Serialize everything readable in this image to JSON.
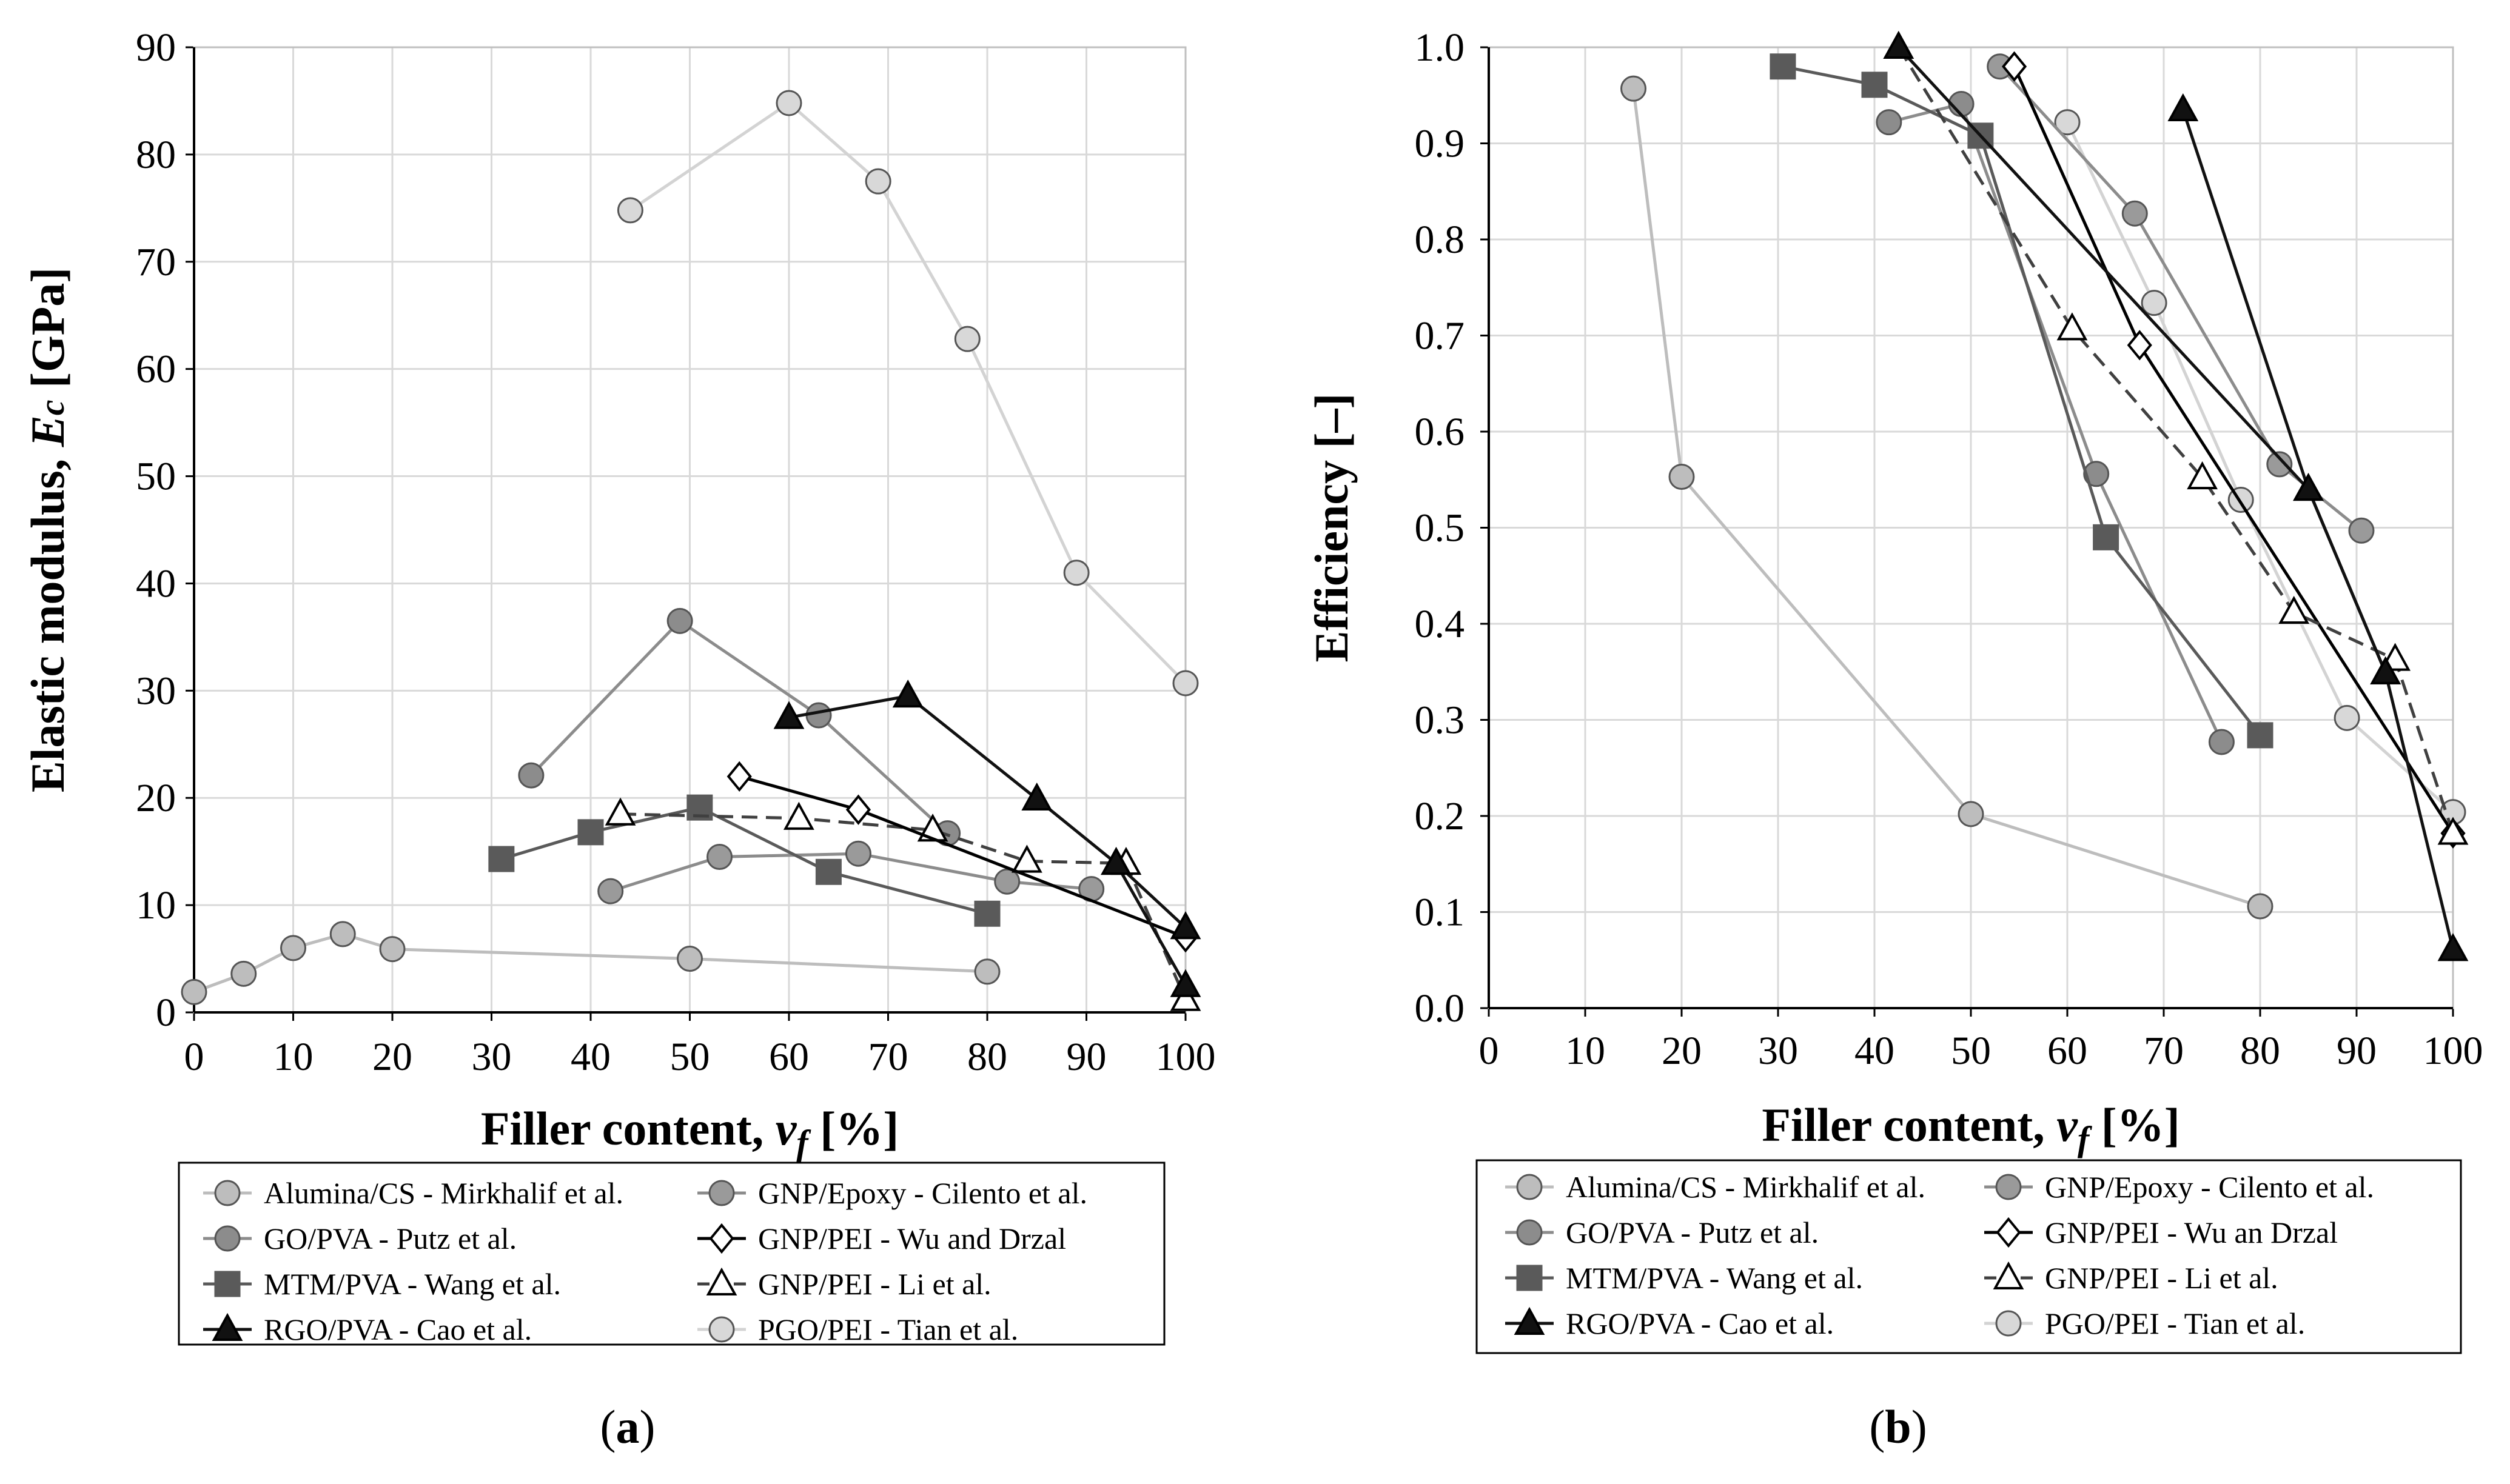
{
  "figure_captions": {
    "a": "(a)",
    "b": "(b)"
  },
  "caption_parts": {
    "open": "(",
    "a_letter": "a",
    "b_letter": "b",
    "close": ")"
  },
  "styles": {
    "Alumina/CS": {
      "color": "#bdbdbd",
      "marker": "circle",
      "fill": "#bdbdbd",
      "dash": false
    },
    "GNP/Epoxy": {
      "color": "#8c8c8c",
      "marker": "circle",
      "fill": "#9a9a9a",
      "dash": false
    },
    "GO/PVA": {
      "color": "#8c8c8c",
      "marker": "circle",
      "fill": "#8c8c8c",
      "dash": false
    },
    "GNP/PEI-WD": {
      "color": "#000000",
      "marker": "diamond",
      "fill": "#ffffff",
      "dash": false
    },
    "MTM/PVA": {
      "color": "#5a5a5a",
      "marker": "square",
      "fill": "#5a5a5a",
      "dash": false
    },
    "GNP/PEI-Li": {
      "color": "#404040",
      "marker": "triangle",
      "fill": "#ffffff",
      "dash": true
    },
    "RGO/PVA": {
      "color": "#111111",
      "marker": "triangle",
      "fill": "#111111",
      "dash": false
    },
    "PGO/PEI": {
      "color": "#d3d3d3",
      "marker": "circle",
      "fill": "#d8d8d8",
      "dash": false
    }
  },
  "chart_data": [
    {
      "id": "a",
      "type": "line",
      "title": "",
      "xlabel": {
        "main": "Filler content, ",
        "var": "v",
        "sub": "f",
        "unit": " [%]"
      },
      "ylabel": {
        "main": "Elastic modulus, ",
        "var": "E",
        "sub": "c",
        "unit": " [GPa]"
      },
      "xlim": [
        0,
        100
      ],
      "ylim": [
        0,
        90
      ],
      "xticks": [
        "0",
        "10",
        "20",
        "30",
        "40",
        "50",
        "60",
        "70",
        "80",
        "90",
        "100"
      ],
      "yticks": [
        "0",
        "10",
        "20",
        "30",
        "40",
        "50",
        "60",
        "70",
        "80",
        "90"
      ],
      "legend": [
        [
          "Alumina/CS - Mirkhalif et al.",
          "Alumina/CS"
        ],
        [
          "GNP/Epoxy - Cilento et al.",
          "GNP/Epoxy"
        ],
        [
          "GO/PVA - Putz et al.",
          "GO/PVA"
        ],
        [
          "GNP/PEI - Wu and Drzal",
          "GNP/PEI-WD"
        ],
        [
          "MTM/PVA - Wang et al.",
          "MTM/PVA"
        ],
        [
          "GNP/PEI - Li et al.",
          "GNP/PEI-Li"
        ],
        [
          "RGO/PVA - Cao et al.",
          "RGO/PVA"
        ],
        [
          "PGO/PEI - Tian et al.",
          "PGO/PEI"
        ]
      ],
      "series": [
        {
          "name": "PGO/PEI",
          "x": [
            44,
            60,
            69,
            78,
            89,
            100
          ],
          "y": [
            74.8,
            84.8,
            77.5,
            62.8,
            41,
            30.7
          ]
        },
        {
          "name": "Alumina/CS",
          "x": [
            0,
            5,
            10,
            15,
            20,
            50,
            80
          ],
          "y": [
            1.9,
            3.6,
            6,
            7.3,
            5.9,
            5,
            3.8
          ]
        },
        {
          "name": "GNP/Epoxy",
          "x": [
            42,
            53,
            67,
            82,
            90.5
          ],
          "y": [
            11.3,
            14.5,
            14.8,
            12.2,
            11.5
          ]
        },
        {
          "name": "GO/PVA",
          "x": [
            34,
            49,
            63,
            76
          ],
          "y": [
            22.1,
            36.5,
            27.7,
            16.7
          ]
        },
        {
          "name": "MTM/PVA",
          "x": [
            31,
            40,
            51,
            64,
            80
          ],
          "y": [
            14.3,
            16.8,
            19.1,
            13.1,
            9.2
          ]
        },
        {
          "name": "GNP/PEI-Li",
          "x": [
            43,
            61,
            74.5,
            84,
            94,
            100
          ],
          "y": [
            18.5,
            18.1,
            17,
            14.1,
            13.9,
            1.2
          ]
        },
        {
          "name": "GNP/PEI-WD",
          "x": [
            55,
            67,
            100
          ],
          "y": [
            22,
            18.9,
            7
          ]
        },
        {
          "name": "RGO/PVA",
          "x": [
            60,
            72,
            85,
            93,
            100
          ],
          "y": [
            27.5,
            29.5,
            19.9,
            13.9,
            2.5
          ]
        },
        {
          "name": "RGO/PVA-tail",
          "style": "RGO/PVA",
          "x": [
            93,
            100
          ],
          "y": [
            13.9,
            7.9
          ]
        }
      ]
    },
    {
      "id": "b",
      "type": "line",
      "title": "",
      "xlabel": {
        "main": "Filler content, ",
        "var": "v",
        "sub": "f",
        "unit": " [%]"
      },
      "ylabel": {
        "main": "Efficiency [–]",
        "var": "",
        "sub": "",
        "unit": ""
      },
      "xlim": [
        0,
        100
      ],
      "ylim": [
        0,
        1
      ],
      "xticks": [
        "0",
        "10",
        "20",
        "30",
        "40",
        "50",
        "60",
        "70",
        "80",
        "90",
        "100"
      ],
      "yticks": [
        "0.0",
        "0.1",
        "0.2",
        "0.3",
        "0.4",
        "0.5",
        "0.6",
        "0.7",
        "0.8",
        "0.9",
        "1.0"
      ],
      "legend": [
        [
          "Alumina/CS - Mirkhalif et al.",
          "Alumina/CS"
        ],
        [
          "GNP/Epoxy - Cilento et al.",
          "GNP/Epoxy"
        ],
        [
          "GO/PVA - Putz et al.",
          "GO/PVA"
        ],
        [
          "GNP/PEI - Wu an Drzal",
          "GNP/PEI-WD"
        ],
        [
          "MTM/PVA - Wang et al.",
          "MTM/PVA"
        ],
        [
          "GNP/PEI - Li et al.",
          "GNP/PEI-Li"
        ],
        [
          "RGO/PVA - Cao et al.",
          "RGO/PVA"
        ],
        [
          "PGO/PEI - Tian et al.",
          "PGO/PEI"
        ]
      ],
      "series": [
        {
          "name": "Alumina/CS",
          "x": [
            15,
            20,
            50,
            80
          ],
          "y": [
            0.957,
            0.553,
            0.202,
            0.106
          ]
        },
        {
          "name": "PGO/PEI",
          "x": [
            60,
            69,
            78,
            89,
            100
          ],
          "y": [
            0.922,
            0.734,
            0.529,
            0.302,
            0.204
          ]
        },
        {
          "name": "GNP/Epoxy",
          "x": [
            53,
            67,
            82,
            90.5
          ],
          "y": [
            0.98,
            0.827,
            0.566,
            0.497
          ]
        },
        {
          "name": "GO/PVA",
          "x": [
            41.5,
            49,
            63,
            76
          ],
          "y": [
            0.922,
            0.941,
            0.556,
            0.277
          ]
        },
        {
          "name": "MTM/PVA",
          "x": [
            30.5,
            40,
            51,
            64,
            80
          ],
          "y": [
            0.98,
            0.961,
            0.908,
            0.49,
            0.284
          ]
        },
        {
          "name": "GNP/PEI-WD",
          "x": [
            54.5,
            67.5,
            100
          ],
          "y": [
            0.98,
            0.69,
            0.182
          ]
        },
        {
          "name": "GNP/PEI-Li",
          "x": [
            42.5,
            60.5,
            74,
            83.5,
            94,
            100
          ],
          "y": [
            1.0,
            0.707,
            0.552,
            0.412,
            0.363,
            0.182
          ]
        },
        {
          "name": "RGO/PVA",
          "x": [
            72,
            85,
            93,
            100
          ],
          "y": [
            0.935,
            0.54,
            0.349,
            0.061
          ]
        },
        {
          "name": "RGO/PVA-b",
          "style": "RGO/PVA",
          "x": [
            42.5,
            85,
            93
          ],
          "y": [
            1.0,
            0.54,
            0.349
          ]
        }
      ]
    }
  ]
}
